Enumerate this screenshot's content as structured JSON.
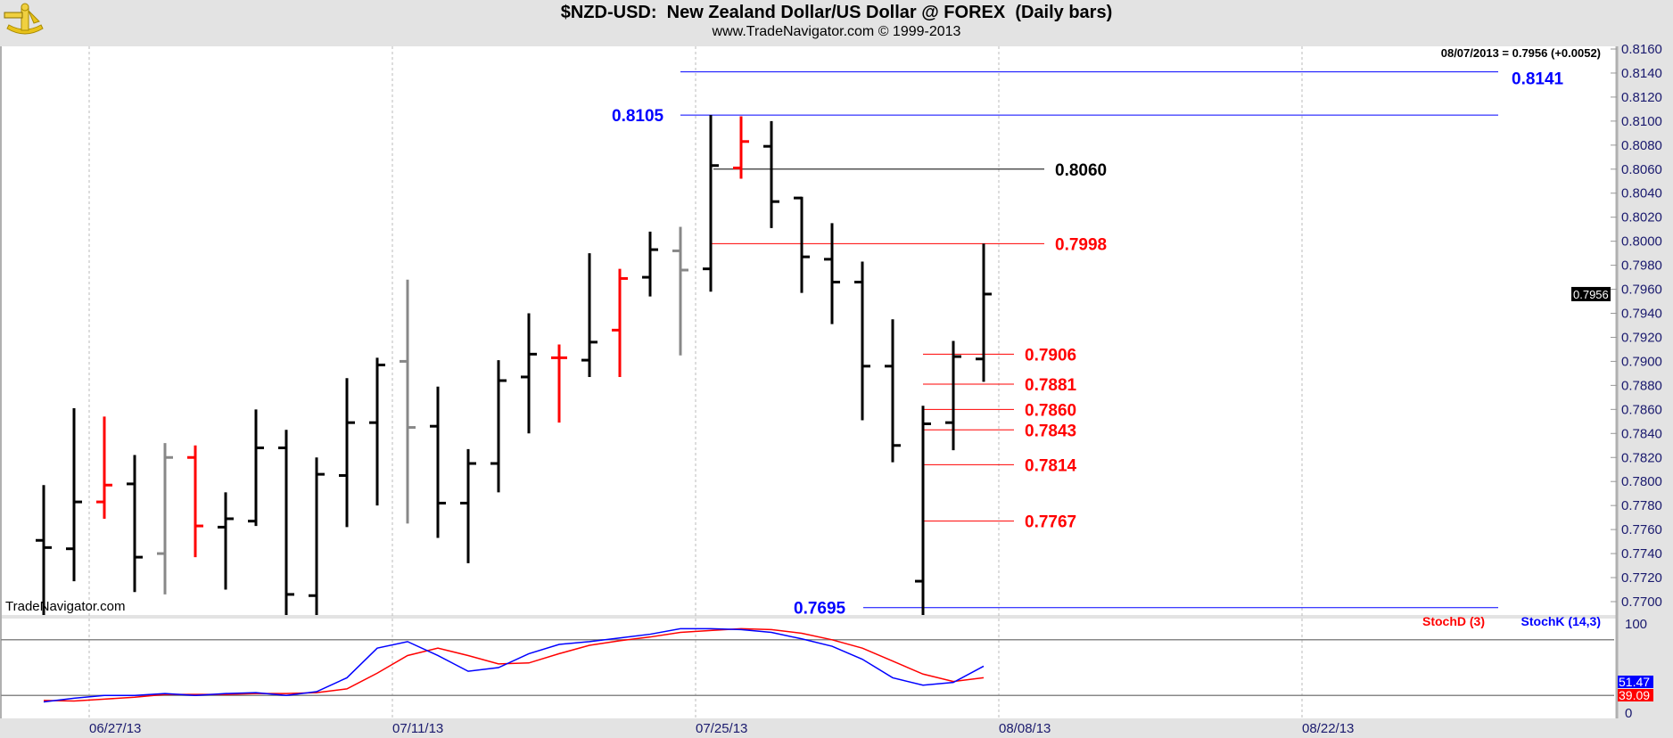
{
  "header": {
    "title": "$NZD-USD:  New Zealand Dollar/US Dollar @ FOREX  (Daily bars)",
    "subtitle": "www.TradeNavigator.com © 1999-2013",
    "last_quote": "08/07/2013 = 0.7956 (+0.0052)",
    "watermark": "TradeNavigator.com",
    "logo_icon": "sextant-icon"
  },
  "chart_data": [
    {
      "type": "ohlc-bar",
      "title": "$NZD-USD:  New Zealand Dollar/US Dollar @ FOREX  (Daily bars)",
      "ylim": [
        0.769,
        0.8165
      ],
      "yticks": [
        "0.8160",
        "0.8140",
        "0.8120",
        "0.8100",
        "0.8080",
        "0.8060",
        "0.8040",
        "0.8020",
        "0.8000",
        "0.7980",
        "0.7960",
        "0.7940",
        "0.7920",
        "0.7900",
        "0.7880",
        "0.7860",
        "0.7840",
        "0.7820",
        "0.7800",
        "0.7780",
        "0.7760",
        "0.7740",
        "0.7720",
        "0.7700"
      ],
      "xticks": [
        "06/27/13",
        "07/11/13",
        "07/25/13",
        "08/08/13",
        "08/22/13"
      ],
      "grid": "vertical-dashed",
      "colors": {
        "black": "#000000",
        "red": "#ff0000",
        "gray": "#888888"
      },
      "last_price_tag": "0.7956",
      "bars": [
        {
          "date": "06/25/13",
          "o": 0.7751,
          "h": 0.7797,
          "l": 0.7688,
          "c": 0.7745,
          "color": "black"
        },
        {
          "date": "06/26/13",
          "o": 0.7744,
          "h": 0.7861,
          "l": 0.7717,
          "c": 0.7783,
          "color": "black"
        },
        {
          "date": "06/27/13",
          "o": 0.7783,
          "h": 0.7854,
          "l": 0.7769,
          "c": 0.7797,
          "color": "red"
        },
        {
          "date": "06/28/13",
          "o": 0.7798,
          "h": 0.7822,
          "l": 0.7708,
          "c": 0.7737,
          "color": "black"
        },
        {
          "date": "07/01/13",
          "o": 0.774,
          "h": 0.7832,
          "l": 0.7706,
          "c": 0.782,
          "color": "gray"
        },
        {
          "date": "07/02/13",
          "o": 0.782,
          "h": 0.783,
          "l": 0.7737,
          "c": 0.7763,
          "color": "red"
        },
        {
          "date": "07/03/13",
          "o": 0.7762,
          "h": 0.7791,
          "l": 0.771,
          "c": 0.7769,
          "color": "black"
        },
        {
          "date": "07/04/13",
          "o": 0.7767,
          "h": 0.786,
          "l": 0.7763,
          "c": 0.7828,
          "color": "black"
        },
        {
          "date": "07/05/13",
          "o": 0.7828,
          "h": 0.7843,
          "l": 0.7688,
          "c": 0.7706,
          "color": "black"
        },
        {
          "date": "07/08/13",
          "o": 0.7705,
          "h": 0.782,
          "l": 0.7688,
          "c": 0.7806,
          "color": "black"
        },
        {
          "date": "07/09/13",
          "o": 0.7805,
          "h": 0.7886,
          "l": 0.7762,
          "c": 0.7849,
          "color": "black"
        },
        {
          "date": "07/10/13",
          "o": 0.7849,
          "h": 0.7903,
          "l": 0.778,
          "c": 0.7897,
          "color": "black"
        },
        {
          "date": "07/11/13",
          "o": 0.79,
          "h": 0.7968,
          "l": 0.7765,
          "c": 0.7845,
          "color": "gray"
        },
        {
          "date": "07/12/13",
          "o": 0.7846,
          "h": 0.7879,
          "l": 0.7753,
          "c": 0.7782,
          "color": "black"
        },
        {
          "date": "07/15/13",
          "o": 0.7782,
          "h": 0.7827,
          "l": 0.7732,
          "c": 0.7815,
          "color": "black"
        },
        {
          "date": "07/16/13",
          "o": 0.7815,
          "h": 0.7901,
          "l": 0.7791,
          "c": 0.7884,
          "color": "black"
        },
        {
          "date": "07/17/13",
          "o": 0.7887,
          "h": 0.794,
          "l": 0.784,
          "c": 0.7906,
          "color": "black"
        },
        {
          "date": "07/18/13",
          "o": 0.7903,
          "h": 0.7914,
          "l": 0.7849,
          "c": 0.7903,
          "color": "red"
        },
        {
          "date": "07/19/13",
          "o": 0.7901,
          "h": 0.799,
          "l": 0.7887,
          "c": 0.7916,
          "color": "black"
        },
        {
          "date": "07/22/13",
          "o": 0.7926,
          "h": 0.7977,
          "l": 0.7887,
          "c": 0.7969,
          "color": "red"
        },
        {
          "date": "07/23/13",
          "o": 0.797,
          "h": 0.8008,
          "l": 0.7954,
          "c": 0.7993,
          "color": "black"
        },
        {
          "date": "07/24/13",
          "o": 0.7992,
          "h": 0.8012,
          "l": 0.7905,
          "c": 0.7976,
          "color": "gray"
        },
        {
          "date": "07/25/13",
          "o": 0.7977,
          "h": 0.8105,
          "l": 0.7958,
          "c": 0.8063,
          "color": "black"
        },
        {
          "date": "07/26/13",
          "o": 0.8061,
          "h": 0.8104,
          "l": 0.8052,
          "c": 0.8083,
          "color": "red"
        },
        {
          "date": "07/29/13",
          "o": 0.8079,
          "h": 0.81,
          "l": 0.8011,
          "c": 0.8033,
          "color": "black"
        },
        {
          "date": "07/30/13",
          "o": 0.8036,
          "h": 0.8037,
          "l": 0.7957,
          "c": 0.7987,
          "color": "black"
        },
        {
          "date": "07/31/13",
          "o": 0.7985,
          "h": 0.8015,
          "l": 0.7931,
          "c": 0.7966,
          "color": "black"
        },
        {
          "date": "08/01/13",
          "o": 0.7966,
          "h": 0.7983,
          "l": 0.7851,
          "c": 0.7896,
          "color": "black"
        },
        {
          "date": "08/02/13",
          "o": 0.7896,
          "h": 0.7935,
          "l": 0.7816,
          "c": 0.783,
          "color": "black"
        },
        {
          "date": "08/05/13",
          "o": 0.7717,
          "h": 0.7863,
          "l": 0.7688,
          "c": 0.7848,
          "color": "black"
        },
        {
          "date": "08/06/13",
          "o": 0.7849,
          "h": 0.7917,
          "l": 0.7826,
          "c": 0.7904,
          "color": "black"
        },
        {
          "date": "08/07/13",
          "o": 0.7902,
          "h": 0.7998,
          "l": 0.7883,
          "c": 0.7956,
          "color": "black"
        }
      ],
      "levels": [
        {
          "price": 0.8141,
          "label": "0.8141",
          "color": "#0000ff"
        },
        {
          "price": 0.8105,
          "label": "0.8105",
          "color": "#0000ff"
        },
        {
          "price": 0.806,
          "label": "0.8060",
          "color": "#000000"
        },
        {
          "price": 0.7998,
          "label": "0.7998",
          "color": "#ff0000"
        },
        {
          "price": 0.7906,
          "label": "0.7906",
          "color": "#ff0000"
        },
        {
          "price": 0.7881,
          "label": "0.7881",
          "color": "#ff0000"
        },
        {
          "price": 0.786,
          "label": "0.7860",
          "color": "#ff0000"
        },
        {
          "price": 0.7843,
          "label": "0.7843",
          "color": "#ff0000"
        },
        {
          "price": 0.7814,
          "label": "0.7814",
          "color": "#ff0000"
        },
        {
          "price": 0.7767,
          "label": "0.7767",
          "color": "#ff0000"
        },
        {
          "price": 0.7695,
          "label": "0.7695",
          "color": "#0000ff"
        }
      ]
    },
    {
      "type": "line",
      "ylim": [
        0,
        100
      ],
      "yticks": [
        "100",
        "0"
      ],
      "reference_lines": [
        80,
        20
      ],
      "series": [
        {
          "name": "StochD (3)",
          "color": "#ff0000",
          "last_tag": "39.09",
          "values": [
            14.5,
            14,
            16,
            18,
            21,
            21,
            21,
            22,
            22,
            23,
            27,
            44,
            63,
            71,
            63,
            54,
            55,
            65,
            74,
            79,
            83,
            88,
            90,
            92,
            91,
            87,
            80,
            71,
            57,
            43,
            35,
            39.09
          ]
        },
        {
          "name": "StochK (14,3)",
          "color": "#0000ff",
          "last_tag": "51.47",
          "values": [
            13,
            17,
            20,
            20,
            22,
            20,
            22,
            23,
            20,
            24,
            39,
            71,
            78,
            63,
            46,
            50,
            65,
            75,
            78,
            82,
            86,
            92,
            92,
            91,
            88,
            81,
            73,
            59,
            39,
            31,
            34,
            51.47
          ]
        }
      ]
    }
  ]
}
